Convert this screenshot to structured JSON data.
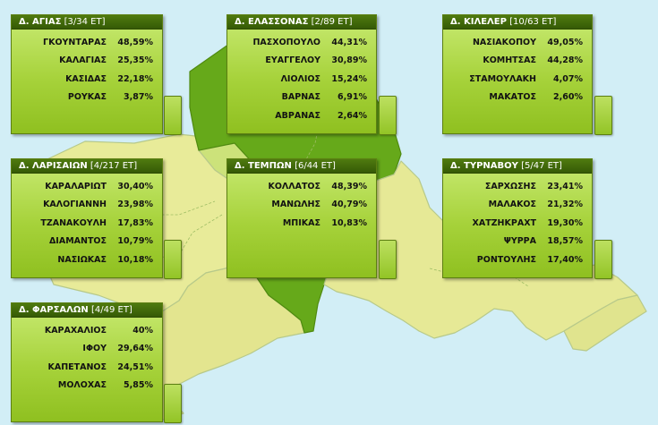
{
  "colors": {
    "sea": "#d2eef6",
    "land_light": "#ecec9c",
    "land_mid": "#c6e277",
    "land_dark": "#66a91a",
    "panel": "#a6d23a",
    "header": "#3f6a08"
  },
  "municipalities": [
    {
      "name": "Δ. ΑΓΙΑΣ",
      "seats": "[3/34 ΕΤ]",
      "results": [
        {
          "candidate": "ΓΚΟΥΝΤΑΡΑΣ",
          "percent": "48,59%"
        },
        {
          "candidate": "ΚΑΛΑΓΙΑΣ",
          "percent": "25,35%"
        },
        {
          "candidate": "ΚΑΣΙΔΑΣ",
          "percent": "22,18%"
        },
        {
          "candidate": "ΡΟΥΚΑΣ",
          "percent": "3,87%"
        }
      ]
    },
    {
      "name": "Δ. ΕΛΑΣΣΟΝΑΣ",
      "seats": "[2/89 ΕΤ]",
      "results": [
        {
          "candidate": "ΠΑΣΧΟΠΟΥΛΟ",
          "percent": "44,31%"
        },
        {
          "candidate": "ΕΥΑΓΓΕΛΟΥ",
          "percent": "30,89%"
        },
        {
          "candidate": "ΛΙΟΛΙΟΣ",
          "percent": "15,24%"
        },
        {
          "candidate": "ΒΑΡΝΑΣ",
          "percent": "6,91%"
        },
        {
          "candidate": "ΑΒΡΑΝΑΣ",
          "percent": "2,64%"
        }
      ]
    },
    {
      "name": "Δ. ΚΙΛΕΛΕΡ",
      "seats": "[10/63 ΕΤ]",
      "results": [
        {
          "candidate": "ΝΑΣΙΑΚΟΠΟΥ",
          "percent": "49,05%"
        },
        {
          "candidate": "ΚΟΜΗΤΣΑΣ",
          "percent": "44,28%"
        },
        {
          "candidate": "ΣΤΑΜΟΥΛΑΚΗ",
          "percent": "4,07%"
        },
        {
          "candidate": "ΜΑΚΑΤΟΣ",
          "percent": "2,60%"
        }
      ]
    },
    {
      "name": "Δ. ΛΑΡΙΣΑΙΩΝ",
      "seats": "[4/217 ΕΤ]",
      "results": [
        {
          "candidate": "ΚΑΡΑΛΑΡΙΩΤ",
          "percent": "30,40%"
        },
        {
          "candidate": "ΚΑΛΟΓΙΑΝΝΗ",
          "percent": "23,98%"
        },
        {
          "candidate": "ΤΖΑΝΑΚΟΥΛΗ",
          "percent": "17,83%"
        },
        {
          "candidate": "ΔΙΑΜΑΝΤΟΣ",
          "percent": "10,79%"
        },
        {
          "candidate": "ΝΑΣΙΩΚΑΣ",
          "percent": "10,18%"
        }
      ]
    },
    {
      "name": "Δ. ΤΕΜΠΩΝ",
      "seats": "[6/44 ΕΤ]",
      "results": [
        {
          "candidate": "ΚΟΛΛΑΤΟΣ",
          "percent": "48,39%"
        },
        {
          "candidate": "ΜΑΝΩΛΗΣ",
          "percent": "40,79%"
        },
        {
          "candidate": "ΜΠΙΚΑΣ",
          "percent": "10,83%"
        }
      ]
    },
    {
      "name": "Δ. ΤΥΡΝΑΒΟΥ",
      "seats": "[5/47 ΕΤ]",
      "results": [
        {
          "candidate": "ΣΑΡΧΩΣΗΣ",
          "percent": "23,41%"
        },
        {
          "candidate": "ΜΑΛΑΚΟΣ",
          "percent": "21,32%"
        },
        {
          "candidate": "ΧΑΤΖΗΚΡΑΧΤ",
          "percent": "19,30%"
        },
        {
          "candidate": "ΨΥΡΡΑ",
          "percent": "18,57%"
        },
        {
          "candidate": "ΡΟΝΤΟΥΛΗΣ",
          "percent": "17,40%"
        }
      ]
    },
    {
      "name": "Δ. ΦΑΡΣΑΛΩΝ",
      "seats": "[4/49 ΕΤ]",
      "results": [
        {
          "candidate": "ΚΑΡΑΧΑΛΙΟΣ",
          "percent": "40%"
        },
        {
          "candidate": "ΙΦΟΥ",
          "percent": "29,64%"
        },
        {
          "candidate": "ΚΑΠΕΤΑΝΟΣ",
          "percent": "24,51%"
        },
        {
          "candidate": "ΜΟΛΟΧΑΣ",
          "percent": "5,85%"
        }
      ]
    }
  ]
}
